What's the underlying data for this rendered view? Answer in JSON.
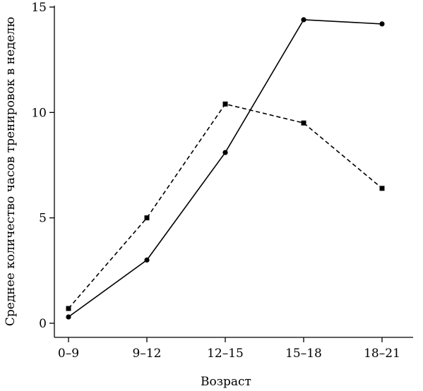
{
  "chart_data": {
    "type": "line",
    "title": "",
    "xlabel": "Возраст",
    "ylabel": "Среднее количество часов тренировок в неделю",
    "categories": [
      "0–9",
      "9–12",
      "12–15",
      "15–18",
      "18–21"
    ],
    "ylim": [
      0,
      15
    ],
    "yticks": [
      "0",
      "5",
      "10",
      "15"
    ],
    "grid": false,
    "series": [
      {
        "marker": "circle",
        "line_style": "solid",
        "color": "#000000",
        "values": [
          0.3,
          3.0,
          8.1,
          14.4,
          14.2
        ]
      },
      {
        "marker": "square",
        "line_style": "dashed",
        "color": "#000000",
        "values": [
          0.7,
          5.0,
          10.4,
          9.5,
          6.4
        ]
      }
    ]
  }
}
